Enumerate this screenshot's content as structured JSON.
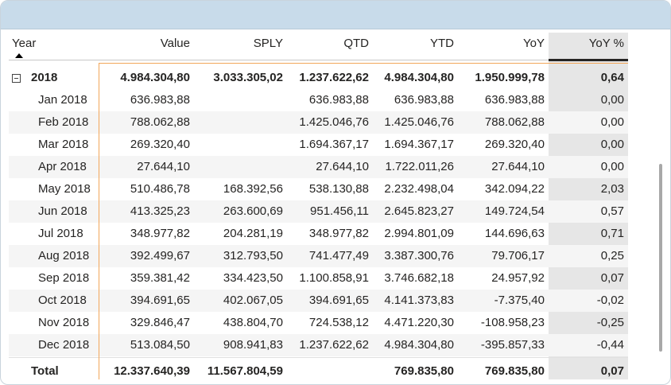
{
  "columns": [
    "Year",
    "Value",
    "SPLY",
    "QTD",
    "YTD",
    "YoY",
    "YoY %"
  ],
  "group": {
    "label": "2018",
    "value": "4.984.304,80",
    "sply": "3.033.305,02",
    "qtd": "1.237.622,62",
    "ytd": "4.984.304,80",
    "yoy": "1.950.999,78",
    "yoy_pct": "0,64"
  },
  "rows": [
    {
      "month": "Jan 2018",
      "value": "636.983,88",
      "sply": "",
      "qtd": "636.983,88",
      "ytd": "636.983,88",
      "yoy": "636.983,88",
      "yoy_pct": "0,00"
    },
    {
      "month": "Feb 2018",
      "value": "788.062,88",
      "sply": "",
      "qtd": "1.425.046,76",
      "ytd": "1.425.046,76",
      "yoy": "788.062,88",
      "yoy_pct": "0,00"
    },
    {
      "month": "Mar 2018",
      "value": "269.320,40",
      "sply": "",
      "qtd": "1.694.367,17",
      "ytd": "1.694.367,17",
      "yoy": "269.320,40",
      "yoy_pct": "0,00"
    },
    {
      "month": "Apr 2018",
      "value": "27.644,10",
      "sply": "",
      "qtd": "27.644,10",
      "ytd": "1.722.011,26",
      "yoy": "27.644,10",
      "yoy_pct": "0,00"
    },
    {
      "month": "May 2018",
      "value": "510.486,78",
      "sply": "168.392,56",
      "qtd": "538.130,88",
      "ytd": "2.232.498,04",
      "yoy": "342.094,22",
      "yoy_pct": "2,03"
    },
    {
      "month": "Jun 2018",
      "value": "413.325,23",
      "sply": "263.600,69",
      "qtd": "951.456,11",
      "ytd": "2.645.823,27",
      "yoy": "149.724,54",
      "yoy_pct": "0,57"
    },
    {
      "month": "Jul 2018",
      "value": "348.977,82",
      "sply": "204.281,19",
      "qtd": "348.977,82",
      "ytd": "2.994.801,09",
      "yoy": "144.696,63",
      "yoy_pct": "0,71"
    },
    {
      "month": "Aug 2018",
      "value": "392.499,67",
      "sply": "312.793,50",
      "qtd": "741.477,49",
      "ytd": "3.387.300,76",
      "yoy": "79.706,17",
      "yoy_pct": "0,25"
    },
    {
      "month": "Sep 2018",
      "value": "359.381,42",
      "sply": "334.423,50",
      "qtd": "1.100.858,91",
      "ytd": "3.746.682,18",
      "yoy": "24.957,92",
      "yoy_pct": "0,07"
    },
    {
      "month": "Oct 2018",
      "value": "394.691,65",
      "sply": "402.067,05",
      "qtd": "394.691,65",
      "ytd": "4.141.373,83",
      "yoy": "-7.375,40",
      "yoy_pct": "-0,02"
    },
    {
      "month": "Nov 2018",
      "value": "329.846,47",
      "sply": "438.804,70",
      "qtd": "724.538,12",
      "ytd": "4.471.220,30",
      "yoy": "-108.958,23",
      "yoy_pct": "-0,25"
    },
    {
      "month": "Dec 2018",
      "value": "513.084,50",
      "sply": "908.941,83",
      "qtd": "1.237.622,62",
      "ytd": "4.984.304,80",
      "yoy": "-395.857,33",
      "yoy_pct": "-0,44"
    }
  ],
  "total": {
    "label": "Total",
    "value": "12.337.640,39",
    "sply": "11.567.804,59",
    "qtd": "",
    "ytd": "769.835,80",
    "yoy": "769.835,80",
    "yoy_pct": "0,07"
  },
  "icons": {
    "expand": "collapse-minus-icon",
    "sort": "sort-ascending-icon"
  },
  "colors": {
    "header_bar": "#c8dbea",
    "accent_line": "#f2a65a",
    "highlight_column": "#e6e6e6"
  }
}
